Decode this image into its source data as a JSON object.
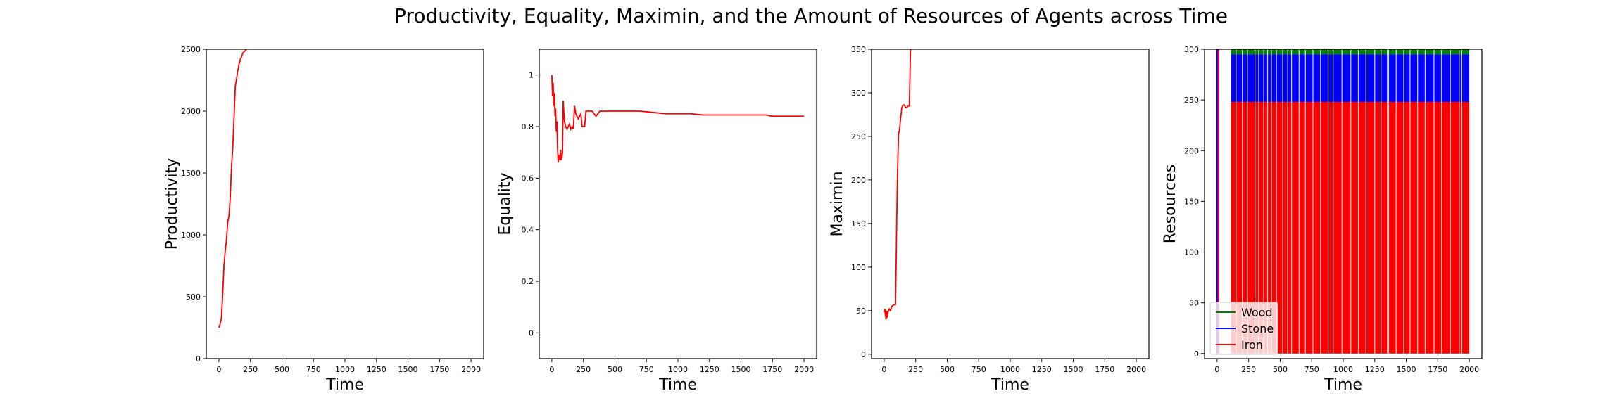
{
  "title": "Productivity, Equality, Maximin, and the Amount of Resources of Agents across Time",
  "chart_data": [
    {
      "type": "line",
      "xlabel": "Time",
      "ylabel": "Productivity",
      "xlim": [
        -100,
        2100
      ],
      "ylim": [
        0,
        2500
      ],
      "xticks": [
        0,
        250,
        500,
        750,
        1000,
        1250,
        1500,
        1750,
        2000
      ],
      "yticks": [
        0,
        500,
        1000,
        1500,
        2000,
        2500
      ],
      "grid": false,
      "series": [
        {
          "color": "#ff0000",
          "x": [
            0,
            10,
            20,
            30,
            40,
            50,
            60,
            70,
            80,
            90,
            100,
            110,
            120,
            130,
            140,
            150,
            160,
            170,
            180,
            190,
            200,
            210,
            220,
            230,
            240
          ],
          "y": [
            250,
            280,
            330,
            520,
            750,
            870,
            960,
            1100,
            1150,
            1300,
            1550,
            1700,
            1950,
            2200,
            2260,
            2330,
            2380,
            2420,
            2440,
            2470,
            2480,
            2490,
            2500,
            2510,
            2520
          ]
        }
      ]
    },
    {
      "type": "line",
      "xlabel": "Time",
      "ylabel": "Equality",
      "xlim": [
        -100,
        2100
      ],
      "ylim": [
        -0.1,
        1.1
      ],
      "xticks": [
        0,
        250,
        500,
        750,
        1000,
        1250,
        1500,
        1750,
        2000
      ],
      "yticks": [
        0.0,
        0.2,
        0.4,
        0.6,
        0.8,
        1.0
      ],
      "grid": false,
      "series": [
        {
          "color": "#ff0000",
          "x": [
            0,
            5,
            10,
            15,
            20,
            25,
            30,
            35,
            40,
            45,
            50,
            55,
            60,
            65,
            70,
            75,
            80,
            85,
            90,
            100,
            110,
            120,
            130,
            140,
            150,
            160,
            170,
            180,
            190,
            200,
            210,
            220,
            230,
            240,
            250,
            260,
            270,
            290,
            300,
            320,
            350,
            380,
            400,
            500,
            600,
            700,
            800,
            900,
            1000,
            1100,
            1200,
            1300,
            1400,
            1500,
            1600,
            1700,
            1750,
            1800,
            1900,
            2000
          ],
          "y": [
            1.0,
            0.92,
            0.97,
            0.88,
            0.93,
            0.84,
            0.87,
            0.78,
            0.82,
            0.72,
            0.66,
            0.69,
            0.68,
            0.67,
            0.71,
            0.67,
            0.68,
            0.7,
            0.9,
            0.82,
            0.8,
            0.79,
            0.8,
            0.81,
            0.79,
            0.8,
            0.79,
            0.88,
            0.85,
            0.84,
            0.83,
            0.84,
            0.85,
            0.8,
            0.8,
            0.8,
            0.86,
            0.86,
            0.86,
            0.86,
            0.84,
            0.86,
            0.86,
            0.86,
            0.86,
            0.86,
            0.855,
            0.85,
            0.85,
            0.85,
            0.845,
            0.845,
            0.845,
            0.845,
            0.845,
            0.845,
            0.84,
            0.84,
            0.84,
            0.84
          ]
        }
      ]
    },
    {
      "type": "line",
      "xlabel": "Time",
      "ylabel": "Maximin",
      "xlim": [
        -100,
        2100
      ],
      "ylim": [
        -5,
        350
      ],
      "xticks": [
        0,
        250,
        500,
        750,
        1000,
        1250,
        1500,
        1750,
        2000
      ],
      "yticks": [
        0,
        50,
        100,
        150,
        200,
        250,
        300,
        350
      ],
      "grid": false,
      "series": [
        {
          "color": "#ff0000",
          "x": [
            0,
            5,
            10,
            15,
            20,
            25,
            30,
            40,
            50,
            60,
            70,
            80,
            90,
            95,
            100,
            105,
            110,
            115,
            120,
            130,
            140,
            150,
            160,
            170,
            180,
            190,
            200,
            205,
            210
          ],
          "y": [
            48,
            52,
            45,
            40,
            50,
            42,
            48,
            52,
            50,
            55,
            56,
            57,
            57,
            100,
            155,
            200,
            230,
            255,
            255,
            270,
            283,
            286,
            286,
            283,
            283,
            285,
            285,
            320,
            360
          ]
        }
      ]
    },
    {
      "type": "area",
      "xlabel": "Time",
      "ylabel": "Resources",
      "xlim": [
        -100,
        2100
      ],
      "ylim": [
        -5,
        300
      ],
      "xticks": [
        0,
        250,
        500,
        750,
        1000,
        1250,
        1500,
        1750,
        2000
      ],
      "yticks": [
        0,
        50,
        100,
        150,
        200,
        250,
        300
      ],
      "grid": false,
      "legend": "lower-left",
      "series": [
        {
          "name": "Wood",
          "color": "#008000"
        },
        {
          "name": "Stone",
          "color": "#0000ff"
        },
        {
          "name": "Iron",
          "color": "#ff0000"
        }
      ],
      "fill_range": [
        110,
        2000
      ],
      "iron_level": 248,
      "stone_level": 295,
      "wood_level": 300,
      "early_spike_x": 0,
      "gap_x": [
        150,
        200,
        240,
        300,
        330,
        370,
        400,
        430,
        470,
        520,
        560,
        590,
        650,
        700,
        760,
        820,
        880,
        920,
        990,
        1060,
        1120,
        1180,
        1250,
        1300,
        1350,
        1360,
        1420,
        1480,
        1530,
        1590,
        1650,
        1720,
        1780,
        1850,
        1920,
        1940
      ]
    }
  ]
}
